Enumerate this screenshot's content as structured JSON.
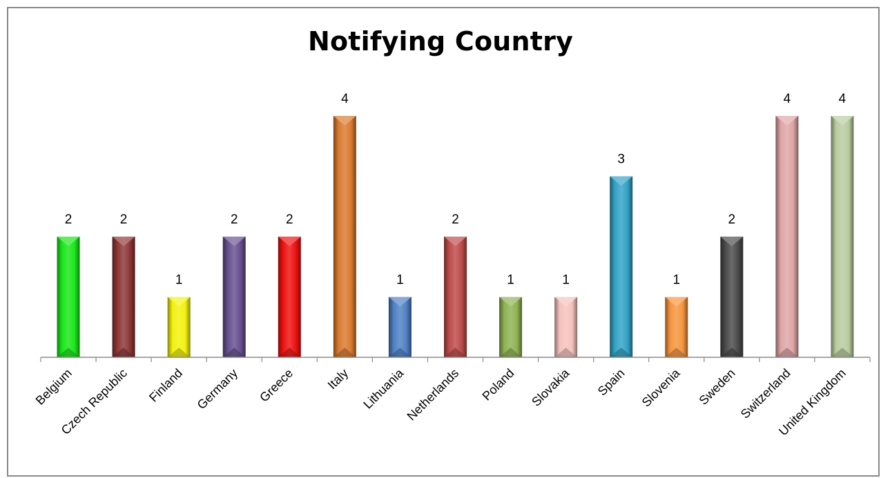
{
  "chart_data": {
    "type": "bar",
    "title": "Notifying Country",
    "xlabel": "",
    "ylabel": "",
    "ylim": [
      0,
      4
    ],
    "grid": false,
    "legend": "none",
    "categories": [
      "Belgium",
      "Czech Republic",
      "Finland",
      "Germany",
      "Greece",
      "Italy",
      "Lithuania",
      "Netherlands",
      "Poland",
      "Slovakia",
      "Spain",
      "Slovenia",
      "Sweden",
      "Switzerland",
      "United Kingdom"
    ],
    "values": [
      2,
      2,
      1,
      2,
      2,
      4,
      1,
      2,
      1,
      1,
      3,
      1,
      2,
      4,
      4
    ],
    "data_labels": [
      "2",
      "2",
      "1",
      "2",
      "2",
      "4",
      "1",
      "2",
      "1",
      "1",
      "3",
      "1",
      "2",
      "4",
      "4"
    ],
    "colors": [
      "#19e619",
      "#8e3636",
      "#f2f20d",
      "#66508f",
      "#ee1111",
      "#d97a30",
      "#4f80c4",
      "#bd4a4a",
      "#8fb253",
      "#f5c2bd",
      "#33a2c4",
      "#f5953d",
      "#4a4a4a",
      "#dea5a5",
      "#b9cca0"
    ]
  }
}
